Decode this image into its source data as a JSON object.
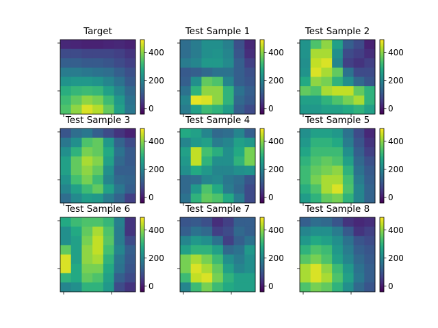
{
  "figure": {
    "colormap": "viridis",
    "colorbar_ticks": [
      0,
      200,
      400
    ],
    "color_range": [
      -40,
      490
    ]
  },
  "chart_data": [
    {
      "type": "heatmap",
      "title": "Target",
      "values": [
        [
          20,
          15,
          10,
          10,
          15,
          20,
          10
        ],
        [
          80,
          80,
          70,
          70,
          70,
          60,
          40
        ],
        [
          120,
          120,
          110,
          110,
          100,
          80,
          60
        ],
        [
          180,
          180,
          170,
          160,
          150,
          120,
          90
        ],
        [
          230,
          240,
          240,
          230,
          200,
          160,
          110
        ],
        [
          290,
          310,
          320,
          310,
          260,
          200,
          140
        ],
        [
          320,
          360,
          400,
          380,
          320,
          240,
          160
        ],
        [
          340,
          400,
          460,
          430,
          360,
          260,
          170
        ]
      ]
    },
    {
      "type": "heatmap",
      "title": "Test Sample 1",
      "values": [
        [
          150,
          180,
          220,
          220,
          190,
          90,
          20
        ],
        [
          150,
          180,
          220,
          230,
          200,
          100,
          30
        ],
        [
          180,
          200,
          240,
          240,
          210,
          120,
          60
        ],
        [
          110,
          120,
          140,
          160,
          160,
          120,
          90
        ],
        [
          120,
          220,
          360,
          340,
          200,
          120,
          100
        ],
        [
          160,
          300,
          400,
          400,
          300,
          160,
          120
        ],
        [
          200,
          470,
          460,
          400,
          300,
          140,
          110
        ],
        [
          180,
          260,
          320,
          300,
          250,
          120,
          80
        ]
      ]
    },
    {
      "type": "heatmap",
      "title": "Test Sample 2",
      "values": [
        [
          230,
          340,
          400,
          260,
          120,
          80,
          10
        ],
        [
          230,
          420,
          420,
          220,
          80,
          60,
          30
        ],
        [
          220,
          440,
          460,
          200,
          60,
          40,
          60
        ],
        [
          230,
          460,
          420,
          360,
          160,
          80,
          80
        ],
        [
          280,
          400,
          380,
          300,
          220,
          140,
          100
        ],
        [
          360,
          340,
          420,
          440,
          440,
          360,
          300
        ],
        [
          260,
          260,
          300,
          340,
          380,
          420,
          300
        ],
        [
          240,
          240,
          260,
          260,
          280,
          300,
          260
        ]
      ]
    },
    {
      "type": "heatmap",
      "title": "Test Sample 3",
      "values": [
        [
          100,
          150,
          170,
          120,
          80,
          40,
          10
        ],
        [
          170,
          220,
          340,
          360,
          240,
          130,
          80
        ],
        [
          220,
          300,
          380,
          360,
          280,
          160,
          110
        ],
        [
          260,
          360,
          420,
          390,
          260,
          140,
          110
        ],
        [
          260,
          360,
          400,
          360,
          220,
          120,
          120
        ],
        [
          230,
          330,
          380,
          320,
          200,
          140,
          130
        ],
        [
          200,
          260,
          320,
          360,
          260,
          170,
          120
        ],
        [
          150,
          210,
          250,
          240,
          180,
          130,
          60
        ]
      ]
    },
    {
      "type": "heatmap",
      "title": "Test Sample 4",
      "values": [
        [
          280,
          260,
          200,
          140,
          150,
          200,
          120
        ],
        [
          200,
          240,
          260,
          180,
          200,
          260,
          240
        ],
        [
          260,
          440,
          330,
          290,
          220,
          280,
          380
        ],
        [
          240,
          440,
          300,
          220,
          220,
          300,
          380
        ],
        [
          220,
          280,
          240,
          200,
          200,
          220,
          230
        ],
        [
          140,
          150,
          200,
          210,
          170,
          150,
          100
        ],
        [
          140,
          240,
          340,
          280,
          180,
          140,
          80
        ],
        [
          160,
          300,
          360,
          340,
          280,
          180,
          80
        ]
      ]
    },
    {
      "type": "heatmap",
      "title": "Test Sample 5",
      "values": [
        [
          220,
          260,
          260,
          240,
          160,
          80,
          20
        ],
        [
          240,
          300,
          300,
          280,
          180,
          100,
          40
        ],
        [
          270,
          320,
          320,
          320,
          220,
          120,
          60
        ],
        [
          300,
          340,
          360,
          340,
          260,
          140,
          90
        ],
        [
          320,
          360,
          380,
          400,
          300,
          160,
          110
        ],
        [
          320,
          380,
          420,
          420,
          330,
          180,
          120
        ],
        [
          290,
          340,
          420,
          460,
          340,
          200,
          130
        ],
        [
          250,
          300,
          360,
          380,
          300,
          200,
          130
        ]
      ]
    },
    {
      "type": "heatmap",
      "title": "Test Sample 6",
      "values": [
        [
          280,
          320,
          340,
          340,
          310,
          190,
          40
        ],
        [
          220,
          280,
          360,
          420,
          340,
          180,
          40
        ],
        [
          220,
          260,
          380,
          440,
          350,
          180,
          80
        ],
        [
          360,
          260,
          400,
          440,
          330,
          200,
          120
        ],
        [
          460,
          260,
          400,
          420,
          300,
          170,
          110
        ],
        [
          460,
          280,
          380,
          380,
          280,
          160,
          100
        ],
        [
          300,
          280,
          360,
          340,
          260,
          120,
          80
        ],
        [
          200,
          220,
          300,
          300,
          240,
          80,
          40
        ]
      ]
    },
    {
      "type": "heatmap",
      "title": "Test Sample 7",
      "values": [
        [
          100,
          110,
          90,
          30,
          60,
          120,
          120
        ],
        [
          120,
          160,
          140,
          60,
          80,
          140,
          120
        ],
        [
          200,
          240,
          220,
          160,
          60,
          120,
          160
        ],
        [
          260,
          300,
          300,
          260,
          140,
          160,
          240
        ],
        [
          380,
          420,
          380,
          320,
          220,
          180,
          220
        ],
        [
          380,
          460,
          420,
          360,
          260,
          200,
          220
        ],
        [
          320,
          440,
          460,
          380,
          300,
          260,
          260
        ],
        [
          200,
          320,
          380,
          320,
          280,
          260,
          260
        ]
      ]
    },
    {
      "type": "heatmap",
      "title": "Test Sample 8",
      "values": [
        [
          120,
          150,
          140,
          100,
          40,
          20,
          30
        ],
        [
          200,
          220,
          220,
          180,
          110,
          40,
          60
        ],
        [
          240,
          280,
          260,
          220,
          160,
          100,
          80
        ],
        [
          300,
          340,
          320,
          240,
          180,
          120,
          100
        ],
        [
          350,
          380,
          340,
          260,
          200,
          140,
          110
        ],
        [
          420,
          460,
          400,
          320,
          240,
          160,
          120
        ],
        [
          420,
          460,
          420,
          340,
          260,
          170,
          120
        ],
        [
          340,
          380,
          360,
          300,
          220,
          140,
          100
        ]
      ]
    }
  ]
}
